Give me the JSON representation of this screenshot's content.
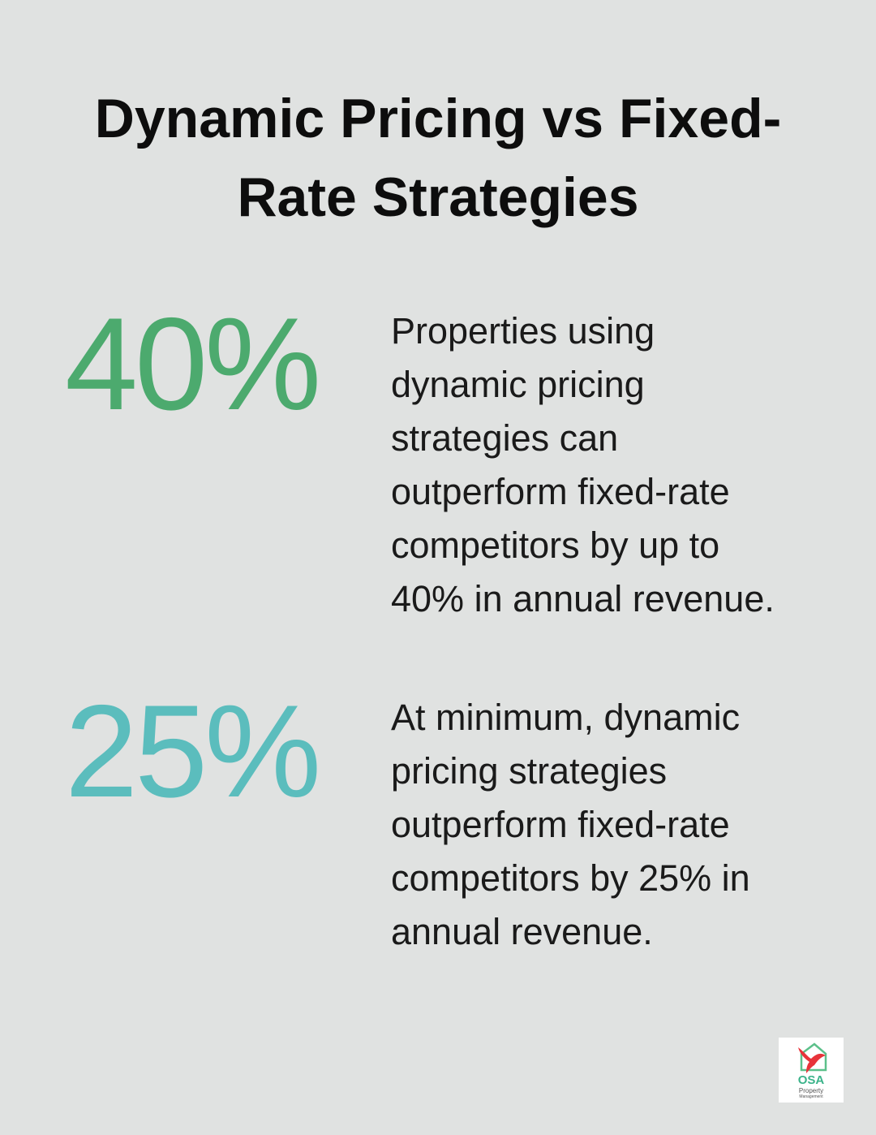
{
  "title": {
    "lines": [
      "Dynamic Pricing vs Fixed-",
      "Rate Strategies"
    ]
  },
  "stats": [
    {
      "value": "40%",
      "color": "#4caa6e",
      "lines": [
        "Properties using",
        "dynamic pricing",
        "strategies can",
        "outperform fixed-rate",
        "competitors by up to",
        "40% in annual revenue."
      ]
    },
    {
      "value": "25%",
      "color": "#5bbdbd",
      "lines": [
        "At minimum, dynamic",
        "pricing strategies",
        "outperform fixed-rate",
        "competitors by 25% in",
        "annual revenue."
      ]
    }
  ],
  "logo": {
    "name": "OSA",
    "line1": "Property",
    "line2": "Management"
  }
}
